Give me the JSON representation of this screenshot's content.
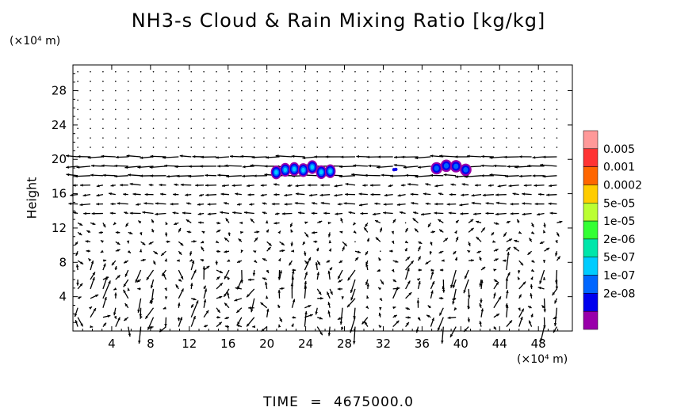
{
  "chart_data": {
    "type": "vector-field with filled contours",
    "title": "NH3-s Cloud & Rain Mixing Ratio [kg/kg]",
    "ylabel": "Height",
    "x_unit": "(×10⁴ m)",
    "y_unit": "(×10⁴ m)",
    "xlim": [
      0,
      51.5
    ],
    "ylim": [
      0,
      31
    ],
    "x_ticks": [
      "4",
      "8",
      "12",
      "16",
      "20",
      "24",
      "28",
      "32",
      "36",
      "40",
      "44",
      "48"
    ],
    "y_ticks": [
      "4",
      "8",
      "12",
      "16",
      "20",
      "24",
      "28"
    ],
    "grid": false,
    "legend": {
      "placement": "right",
      "levels": [
        "0.005",
        "0.001",
        "0.0002",
        "5e-05",
        "1e-05",
        "2e-06",
        "5e-07",
        "1e-07",
        "2e-08"
      ],
      "colors": [
        "#ff9999",
        "#ff3333",
        "#ff6600",
        "#ffcc00",
        "#bbff33",
        "#33ff33",
        "#00e6aa",
        "#00ccff",
        "#0066ff",
        "#0000ee",
        "#9900aa"
      ]
    },
    "cloud_regions": [
      {
        "x_range": [
          20.5,
          27.0
        ],
        "y_range": [
          17.8,
          19.8
        ],
        "peak_level": "5e-07"
      },
      {
        "x_range": [
          33.0,
          33.4
        ],
        "y_range": [
          18.7,
          19.1
        ],
        "peak_level": "2e-08"
      },
      {
        "x_range": [
          37.0,
          41.0
        ],
        "y_range": [
          18.0,
          19.8
        ],
        "peak_level": "1e-07"
      }
    ]
  },
  "footer": {
    "time_label": "TIME",
    "equals": "=",
    "time_value": "4675000.0"
  }
}
